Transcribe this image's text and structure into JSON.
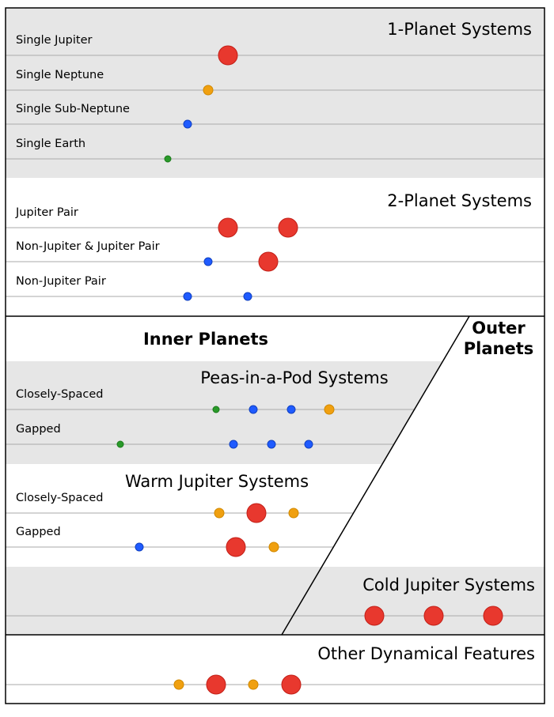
{
  "sections": [
    {
      "title": "1-Planet Systems",
      "rows": [
        {
          "label": "Single Jupiter"
        },
        {
          "label": "Single Neptune"
        },
        {
          "label": "Single Sub-Neptune"
        },
        {
          "label": "Single Earth"
        }
      ]
    },
    {
      "title": "2-Planet Systems",
      "rows": [
        {
          "label": "Jupiter Pair"
        },
        {
          "label": "Non-Jupiter & Jupiter Pair"
        },
        {
          "label": "Non-Jupiter Pair"
        }
      ]
    },
    {
      "title": "Peas-in-a-Pod Systems",
      "rows": [
        {
          "label": "Closely-Spaced"
        },
        {
          "label": "Gapped"
        }
      ]
    },
    {
      "title": "Warm Jupiter Systems",
      "rows": [
        {
          "label": "Closely-Spaced"
        },
        {
          "label": "Gapped"
        }
      ]
    },
    {
      "title": "Cold Jupiter Systems",
      "rows": []
    },
    {
      "title": "Other Dynamical Features",
      "rows": []
    }
  ],
  "inner_label": "Inner Planets",
  "outer_label": "Outer Planets"
}
